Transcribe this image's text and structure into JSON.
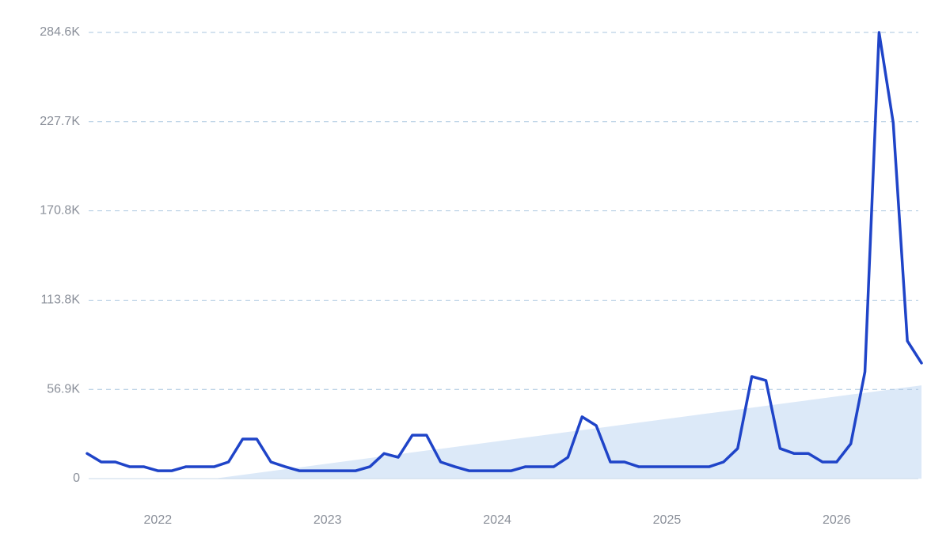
{
  "chart_data": {
    "type": "line",
    "categories": [
      null,
      null,
      null,
      null,
      null,
      "2022",
      null,
      null,
      null,
      null,
      null,
      null,
      null,
      null,
      null,
      null,
      null,
      "2023",
      null,
      null,
      null,
      null,
      null,
      null,
      null,
      null,
      null,
      null,
      null,
      "2024",
      null,
      null,
      null,
      null,
      null,
      null,
      null,
      null,
      null,
      null,
      null,
      "2025",
      null,
      null,
      null,
      null,
      null,
      null,
      null,
      null,
      null,
      null,
      null,
      "2026",
      null,
      null,
      null,
      null,
      null,
      null
    ],
    "series": [
      {
        "color": "#1f44c8",
        "values": [
          16,
          10.6,
          10.6,
          7.6,
          7.6,
          5,
          5,
          7.6,
          7.6,
          7.6,
          10.6,
          25.2,
          25.2,
          10.6,
          7.6,
          5,
          5,
          5,
          5,
          5,
          7.6,
          16,
          13.6,
          27.7,
          27.7,
          10.6,
          7.6,
          5,
          5,
          5,
          5,
          7.6,
          7.6,
          7.6,
          13.6,
          39.4,
          33.8,
          10.6,
          10.6,
          7.6,
          7.6,
          7.6,
          7.6,
          7.6,
          7.6,
          10.6,
          19.2,
          65.1,
          62.6,
          19.2,
          16,
          16,
          10.6,
          10.6,
          22.2,
          68.1,
          284.6,
          227,
          87.8,
          73.7
        ]
      },
      {
        "color": "#dce9f8",
        "area": true,
        "values": [
          null,
          null,
          null,
          null,
          null,
          null,
          null,
          null,
          null,
          0,
          1.2,
          2.4,
          3.6,
          4.8,
          6.0,
          7.1,
          8.3,
          9.5,
          10.7,
          11.9,
          13.1,
          14.3,
          15.5,
          16.7,
          17.9,
          19.0,
          20.2,
          21.4,
          22.6,
          23.8,
          25.0,
          26.2,
          27.4,
          28.6,
          29.8,
          30.9,
          32.1,
          33.3,
          34.5,
          35.7,
          36.9,
          38.1,
          39.3,
          40.5,
          41.7,
          42.8,
          44.0,
          45.2,
          46.4,
          47.6,
          48.8,
          50.0,
          51.2,
          52.4,
          53.6,
          54.7,
          55.9,
          57.1,
          58.3,
          59.5
        ]
      }
    ],
    "ylim": [
      0,
      284.6
    ],
    "yticks": [
      0,
      {
        "value": 56.9,
        "label": "56.9K"
      },
      {
        "value": 113.8,
        "label": "113.8K"
      },
      {
        "value": 170.8,
        "label": "170.8K"
      },
      {
        "value": 227.7,
        "label": "227.7K"
      },
      {
        "value": 284.6,
        "label": "284.6K"
      }
    ],
    "grid": true
  }
}
